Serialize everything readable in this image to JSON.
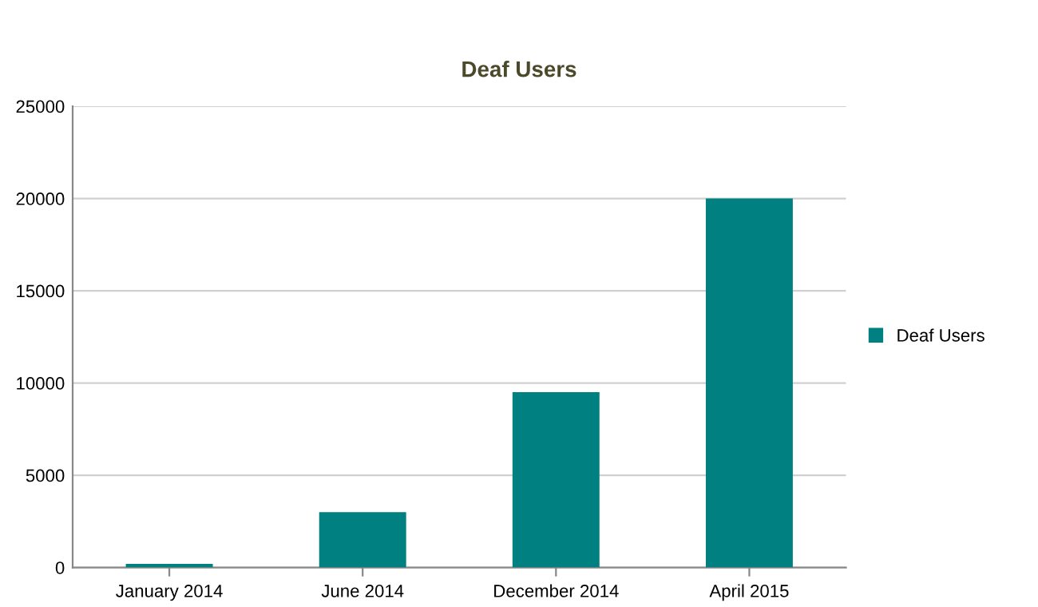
{
  "chart_data": {
    "type": "bar",
    "title": "Deaf Users",
    "categories": [
      "January 2014",
      "June 2014",
      "December 2014",
      "April 2015"
    ],
    "series": [
      {
        "name": "Deaf Users",
        "color": "#008080",
        "values": [
          200,
          3000,
          9500,
          20000
        ]
      }
    ],
    "ylim": [
      0,
      25000
    ],
    "yticks": [
      0,
      5000,
      10000,
      15000,
      20000,
      25000
    ],
    "grid": "y",
    "legend": "right"
  }
}
